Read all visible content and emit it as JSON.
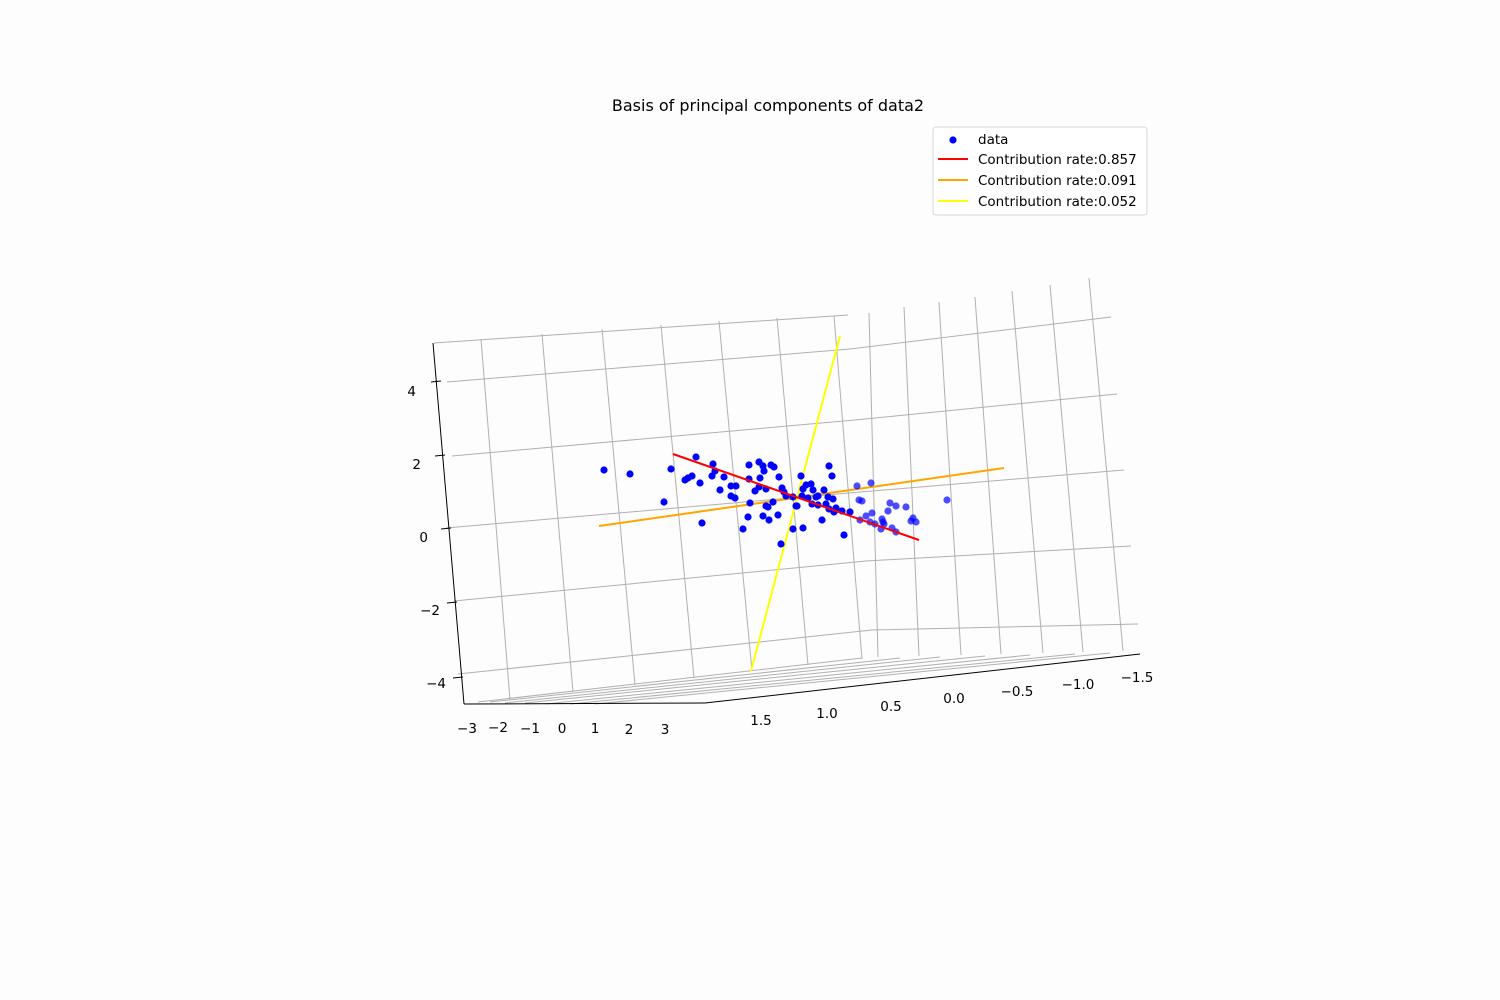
{
  "chart_data": {
    "type": "scatter",
    "projection": "3d",
    "title": "Basis of principal components of data2",
    "xlabel": "",
    "ylabel": "",
    "zlabel": "",
    "grid": true,
    "legend_position": "top-right",
    "axes": {
      "x": {
        "range": [
          -3,
          3
        ],
        "ticks": [
          "−3",
          "−2",
          "−1",
          "0",
          "1",
          "2",
          "3"
        ]
      },
      "y": {
        "range": [
          -1.5,
          1.5
        ],
        "ticks": [
          "1.5",
          "1.0",
          "0.5",
          "0.0",
          "−0.5",
          "−1.0",
          "−1.5"
        ]
      },
      "z": {
        "range": [
          -4,
          4
        ],
        "ticks": [
          "4",
          "2",
          "0",
          "−2",
          "−4"
        ]
      }
    },
    "series": [
      {
        "name": "data",
        "kind": "scatter",
        "color": "#0000ff",
        "note": "approximately 100 points clustered around the origin, elongated along the first principal component"
      },
      {
        "name": "Contribution rate:0.857",
        "kind": "line",
        "color": "#ff0000"
      },
      {
        "name": "Contribution rate:0.091",
        "kind": "line",
        "color": "#ffa500"
      },
      {
        "name": "Contribution rate:0.052",
        "kind": "line",
        "color": "#ffff00"
      }
    ]
  }
}
